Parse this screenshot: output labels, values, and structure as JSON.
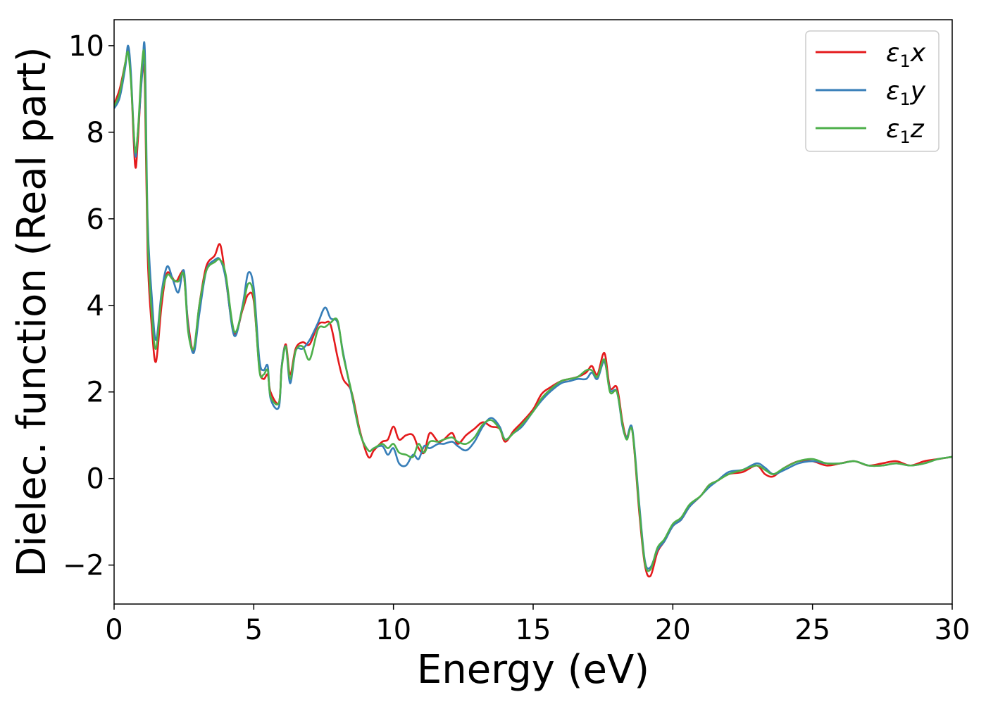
{
  "chart_data": {
    "type": "line",
    "title": "",
    "xlabel": "Energy (eV)",
    "ylabel": "Dielec. function (Real part)",
    "xlim": [
      0,
      30
    ],
    "ylim": [
      -2.9,
      10.6
    ],
    "xticks": [
      0,
      5,
      10,
      15,
      20,
      25,
      30
    ],
    "xtick_labels": [
      "0",
      "5",
      "10",
      "15",
      "20",
      "25",
      "30"
    ],
    "yticks": [
      -2,
      0,
      2,
      4,
      6,
      8,
      10
    ],
    "ytick_labels": [
      "−2",
      "0",
      "2",
      "4",
      "6",
      "8",
      "10"
    ],
    "grid": false,
    "legend_position": "top-right",
    "series": [
      {
        "name": "ε₁x",
        "legend_base": "ε",
        "legend_sub": "1",
        "legend_var": "x",
        "color": "#e41a1c",
        "x": [
          0.0,
          0.2,
          0.4,
          0.5,
          0.6,
          0.75,
          0.85,
          1.0,
          1.1,
          1.2,
          1.35,
          1.5,
          1.7,
          1.9,
          2.2,
          2.4,
          2.5,
          2.65,
          2.85,
          3.05,
          3.3,
          3.6,
          3.8,
          4.0,
          4.3,
          4.6,
          4.8,
          5.0,
          5.2,
          5.35,
          5.5,
          5.6,
          5.9,
          6.0,
          6.15,
          6.3,
          6.5,
          6.75,
          7.0,
          7.3,
          7.55,
          7.75,
          8.0,
          8.2,
          8.5,
          8.8,
          9.1,
          9.3,
          9.6,
          9.8,
          10.0,
          10.2,
          10.45,
          10.7,
          10.9,
          11.1,
          11.3,
          11.6,
          11.8,
          12.1,
          12.3,
          12.6,
          12.9,
          13.2,
          13.5,
          13.8,
          14.0,
          14.3,
          14.6,
          15.0,
          15.3,
          15.6,
          16.0,
          16.3,
          16.6,
          16.9,
          17.1,
          17.3,
          17.55,
          17.75,
          18.0,
          18.2,
          18.35,
          18.55,
          18.8,
          19.0,
          19.2,
          19.45,
          19.7,
          20.0,
          20.3,
          20.6,
          21.0,
          21.3,
          21.6,
          22.0,
          22.5,
          23.0,
          23.3,
          23.6,
          24.0,
          24.5,
          25.0,
          25.5,
          26.0,
          26.5,
          27.0,
          27.5,
          28.0,
          28.5,
          29.0,
          29.5,
          30.0
        ],
        "y": [
          8.65,
          9.0,
          9.6,
          9.9,
          9.3,
          7.25,
          7.8,
          9.35,
          9.1,
          5.2,
          3.5,
          2.7,
          4.0,
          4.75,
          4.55,
          4.75,
          4.7,
          3.6,
          2.95,
          4.0,
          4.9,
          5.15,
          5.4,
          4.6,
          3.35,
          3.9,
          4.25,
          4.1,
          2.55,
          2.3,
          2.4,
          2.0,
          1.75,
          2.6,
          3.1,
          2.4,
          3.0,
          3.15,
          3.1,
          3.55,
          3.6,
          3.55,
          2.8,
          2.3,
          2.0,
          1.1,
          0.5,
          0.65,
          0.85,
          0.9,
          1.2,
          0.9,
          1.0,
          1.0,
          0.7,
          0.6,
          1.05,
          0.85,
          0.9,
          1.05,
          0.8,
          1.0,
          1.15,
          1.3,
          1.2,
          1.15,
          0.85,
          1.1,
          1.3,
          1.6,
          1.95,
          2.1,
          2.25,
          2.3,
          2.35,
          2.45,
          2.6,
          2.4,
          2.9,
          2.1,
          2.1,
          1.3,
          0.95,
          1.1,
          -0.8,
          -2.0,
          -2.25,
          -1.7,
          -1.45,
          -1.1,
          -0.95,
          -0.65,
          -0.4,
          -0.15,
          -0.05,
          0.1,
          0.15,
          0.3,
          0.1,
          0.05,
          0.25,
          0.4,
          0.4,
          0.3,
          0.35,
          0.4,
          0.3,
          0.35,
          0.4,
          0.3,
          0.4,
          0.45,
          0.5
        ]
      },
      {
        "name": "ε₁y",
        "legend_base": "ε",
        "legend_sub": "1",
        "legend_var": "y",
        "color": "#377eb8",
        "x": [
          0.0,
          0.2,
          0.4,
          0.5,
          0.6,
          0.75,
          0.85,
          1.0,
          1.1,
          1.2,
          1.35,
          1.5,
          1.7,
          1.9,
          2.1,
          2.3,
          2.5,
          2.65,
          2.85,
          3.05,
          3.3,
          3.6,
          3.8,
          4.0,
          4.3,
          4.6,
          4.8,
          5.0,
          5.2,
          5.35,
          5.5,
          5.6,
          5.9,
          6.0,
          6.15,
          6.3,
          6.5,
          6.75,
          7.0,
          7.3,
          7.55,
          7.75,
          8.0,
          8.2,
          8.5,
          8.8,
          9.1,
          9.3,
          9.6,
          9.8,
          10.0,
          10.2,
          10.45,
          10.7,
          10.9,
          11.1,
          11.3,
          11.6,
          11.8,
          12.1,
          12.3,
          12.6,
          12.9,
          13.2,
          13.5,
          13.8,
          14.0,
          14.3,
          14.6,
          15.0,
          15.3,
          15.6,
          16.0,
          16.3,
          16.6,
          16.9,
          17.1,
          17.3,
          17.55,
          17.75,
          18.0,
          18.2,
          18.35,
          18.55,
          18.8,
          19.0,
          19.2,
          19.45,
          19.7,
          20.0,
          20.3,
          20.6,
          21.0,
          21.3,
          21.6,
          22.0,
          22.5,
          23.0,
          23.3,
          23.6,
          24.0,
          24.5,
          25.0,
          25.5,
          26.0,
          26.5,
          27.0,
          27.5,
          28.0,
          28.5,
          29.0,
          29.5,
          30.0
        ],
        "y": [
          8.55,
          8.8,
          9.5,
          10.0,
          9.4,
          7.5,
          8.0,
          9.3,
          9.9,
          6.0,
          4.2,
          3.2,
          4.3,
          4.9,
          4.6,
          4.3,
          4.8,
          3.5,
          2.9,
          3.8,
          4.8,
          5.05,
          5.05,
          4.6,
          3.3,
          4.0,
          4.75,
          4.4,
          2.75,
          2.5,
          2.6,
          1.85,
          1.65,
          2.6,
          3.05,
          2.2,
          2.95,
          3.0,
          3.2,
          3.6,
          3.95,
          3.7,
          3.6,
          2.9,
          1.95,
          1.05,
          0.65,
          0.7,
          0.75,
          0.55,
          0.7,
          0.35,
          0.3,
          0.55,
          0.45,
          0.75,
          0.7,
          0.8,
          0.8,
          0.85,
          0.75,
          0.65,
          0.85,
          1.2,
          1.4,
          1.2,
          0.9,
          1.05,
          1.2,
          1.55,
          1.8,
          2.0,
          2.2,
          2.25,
          2.3,
          2.3,
          2.45,
          2.3,
          2.7,
          2.05,
          2.0,
          1.2,
          0.95,
          1.15,
          -0.6,
          -1.9,
          -2.05,
          -1.65,
          -1.45,
          -1.1,
          -0.95,
          -0.65,
          -0.4,
          -0.2,
          -0.05,
          0.15,
          0.2,
          0.35,
          0.25,
          0.1,
          0.2,
          0.35,
          0.4,
          0.35,
          0.35,
          0.4,
          0.3,
          0.3,
          0.35,
          0.3,
          0.35,
          0.45,
          0.5
        ]
      },
      {
        "name": "ε₁z",
        "legend_base": "ε",
        "legend_sub": "1",
        "legend_var": "z",
        "color": "#4daf4a",
        "x": [
          0.0,
          0.2,
          0.4,
          0.5,
          0.6,
          0.75,
          0.85,
          1.0,
          1.1,
          1.2,
          1.35,
          1.5,
          1.7,
          1.9,
          2.1,
          2.3,
          2.5,
          2.65,
          2.85,
          3.05,
          3.3,
          3.6,
          3.8,
          4.0,
          4.3,
          4.6,
          4.8,
          5.0,
          5.2,
          5.35,
          5.5,
          5.6,
          5.9,
          6.0,
          6.15,
          6.3,
          6.5,
          6.75,
          7.0,
          7.3,
          7.55,
          7.75,
          8.0,
          8.2,
          8.5,
          8.8,
          9.1,
          9.3,
          9.6,
          9.8,
          10.0,
          10.2,
          10.45,
          10.7,
          10.9,
          11.1,
          11.3,
          11.6,
          11.8,
          12.1,
          12.3,
          12.6,
          12.9,
          13.2,
          13.5,
          13.8,
          14.0,
          14.3,
          14.6,
          15.0,
          15.3,
          15.6,
          16.0,
          16.3,
          16.6,
          16.9,
          17.1,
          17.3,
          17.55,
          17.75,
          18.0,
          18.2,
          18.35,
          18.55,
          18.8,
          19.0,
          19.2,
          19.45,
          19.7,
          20.0,
          20.3,
          20.6,
          21.0,
          21.3,
          21.6,
          22.0,
          22.5,
          23.0,
          23.3,
          23.6,
          24.0,
          24.5,
          25.0,
          25.5,
          26.0,
          26.5,
          27.0,
          27.5,
          28.0,
          28.5,
          29.0,
          29.5,
          30.0
        ],
        "y": [
          8.6,
          8.9,
          9.6,
          9.85,
          9.2,
          7.6,
          8.0,
          9.6,
          9.5,
          5.6,
          3.8,
          3.0,
          4.2,
          4.7,
          4.6,
          4.55,
          4.7,
          3.4,
          3.0,
          4.0,
          4.8,
          5.0,
          5.05,
          4.7,
          3.4,
          3.95,
          4.5,
          4.2,
          2.5,
          2.4,
          2.5,
          1.9,
          1.75,
          2.55,
          3.05,
          2.3,
          2.95,
          3.05,
          2.75,
          3.45,
          3.5,
          3.6,
          3.65,
          2.85,
          2.0,
          1.05,
          0.65,
          0.7,
          0.8,
          0.7,
          0.8,
          0.6,
          0.55,
          0.5,
          0.8,
          0.6,
          0.85,
          0.85,
          0.9,
          0.95,
          0.85,
          0.8,
          0.95,
          1.25,
          1.35,
          1.15,
          0.9,
          1.05,
          1.25,
          1.55,
          1.85,
          2.05,
          2.25,
          2.3,
          2.35,
          2.5,
          2.5,
          2.35,
          2.75,
          2.0,
          2.0,
          1.25,
          0.9,
          1.1,
          -0.7,
          -1.95,
          -2.1,
          -1.6,
          -1.4,
          -1.05,
          -0.9,
          -0.6,
          -0.4,
          -0.15,
          -0.05,
          0.1,
          0.2,
          0.3,
          0.2,
          0.1,
          0.25,
          0.4,
          0.45,
          0.35,
          0.35,
          0.4,
          0.3,
          0.3,
          0.35,
          0.3,
          0.35,
          0.45,
          0.5
        ]
      }
    ]
  }
}
